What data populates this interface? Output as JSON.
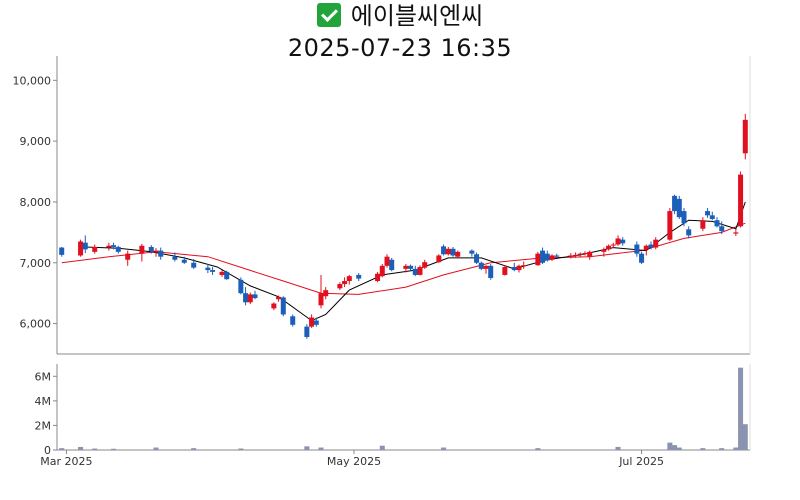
{
  "title": {
    "icon": "check-icon",
    "name": "에이블씨엔씨",
    "timestamp": "2025-07-23 16:35"
  },
  "colors": {
    "up": "#e0101e",
    "down": "#1b5fb8",
    "ma5": "#000000",
    "ma20": "#e0101e",
    "volume": "#8a93b0"
  },
  "chart_data": [
    {
      "type": "candlestick",
      "ylim": [
        5500,
        10400
      ],
      "yticks": [
        6000,
        7000,
        8000,
        9000,
        10000
      ],
      "ytick_labels": [
        "6,000",
        "7,000",
        "8,000",
        "9,000",
        "10,000"
      ],
      "xlim": [
        "2025-02-27",
        "2025-07-24"
      ],
      "xticks": [
        "2025-03-01",
        "2025-05-01",
        "2025-07-01"
      ],
      "xtick_labels": [
        "Mar 2025",
        "May 2025",
        "Jul 2025"
      ],
      "grid": false,
      "legend": "none",
      "candles": [
        [
          "2025-02-28",
          7250,
          7260,
          7100,
          7130
        ],
        [
          "2025-03-04",
          7120,
          7380,
          7100,
          7350
        ],
        [
          "2025-03-05",
          7330,
          7450,
          7160,
          7220
        ],
        [
          "2025-03-07",
          7180,
          7300,
          7150,
          7260
        ],
        [
          "2025-03-10",
          7250,
          7330,
          7200,
          7280
        ],
        [
          "2025-03-11",
          7290,
          7330,
          7220,
          7260
        ],
        [
          "2025-03-12",
          7260,
          7280,
          7150,
          7180
        ],
        [
          "2025-03-14",
          7050,
          7200,
          6950,
          7150
        ],
        [
          "2025-03-17",
          7150,
          7310,
          7020,
          7280
        ],
        [
          "2025-03-19",
          7260,
          7290,
          7150,
          7190
        ],
        [
          "2025-03-20",
          7190,
          7240,
          7100,
          7200
        ],
        [
          "2025-03-21",
          7200,
          7250,
          7050,
          7100
        ],
        [
          "2025-03-24",
          7100,
          7170,
          7020,
          7050
        ],
        [
          "2025-03-26",
          7050,
          7100,
          6980,
          7000
        ],
        [
          "2025-03-28",
          7000,
          7060,
          6900,
          6920
        ],
        [
          "2025-03-31",
          6920,
          6980,
          6830,
          6880
        ],
        [
          "2025-04-01",
          6880,
          6930,
          6800,
          6850
        ],
        [
          "2025-04-03",
          6800,
          6880,
          6770,
          6850
        ],
        [
          "2025-04-04",
          6850,
          6870,
          6720,
          6730
        ],
        [
          "2025-04-07",
          6720,
          6760,
          6480,
          6500
        ],
        [
          "2025-04-08",
          6500,
          6600,
          6300,
          6350
        ],
        [
          "2025-04-09",
          6350,
          6510,
          6320,
          6480
        ],
        [
          "2025-04-10",
          6480,
          6540,
          6400,
          6420
        ],
        [
          "2025-04-14",
          6250,
          6350,
          6220,
          6330
        ],
        [
          "2025-04-15",
          6400,
          6460,
          6360,
          6440
        ],
        [
          "2025-04-16",
          6430,
          6450,
          6120,
          6150
        ],
        [
          "2025-04-18",
          6120,
          6150,
          5950,
          5980
        ],
        [
          "2025-04-21",
          5950,
          5990,
          5750,
          5780
        ],
        [
          "2025-04-22",
          5950,
          6150,
          5930,
          6100
        ],
        [
          "2025-04-23",
          6050,
          6100,
          5950,
          5980
        ],
        [
          "2025-04-24",
          6300,
          6800,
          6250,
          6500
        ],
        [
          "2025-04-25",
          6450,
          6600,
          6400,
          6550
        ],
        [
          "2025-04-28",
          6580,
          6680,
          6550,
          6650
        ],
        [
          "2025-04-29",
          6650,
          6760,
          6600,
          6700
        ],
        [
          "2025-04-30",
          6700,
          6800,
          6640,
          6780
        ],
        [
          "2025-05-02",
          6800,
          6830,
          6700,
          6740
        ],
        [
          "2025-05-06",
          6700,
          6850,
          6680,
          6820
        ],
        [
          "2025-05-07",
          6780,
          6980,
          6760,
          6950
        ],
        [
          "2025-05-08",
          6950,
          7140,
          6920,
          7100
        ],
        [
          "2025-05-09",
          7050,
          7080,
          6860,
          6880
        ],
        [
          "2025-05-12",
          6900,
          6980,
          6840,
          6950
        ],
        [
          "2025-05-13",
          6950,
          6970,
          6870,
          6900
        ],
        [
          "2025-05-14",
          6900,
          6950,
          6780,
          6800
        ],
        [
          "2025-05-15",
          6800,
          6960,
          6790,
          6930
        ],
        [
          "2025-05-16",
          6920,
          7050,
          6900,
          7010
        ],
        [
          "2025-05-19",
          7010,
          7140,
          7000,
          7120
        ],
        [
          "2025-05-20",
          7270,
          7300,
          7120,
          7140
        ],
        [
          "2025-05-21",
          7140,
          7260,
          7120,
          7230
        ],
        [
          "2025-05-22",
          7230,
          7260,
          7100,
          7120
        ],
        [
          "2025-05-23",
          7100,
          7200,
          7080,
          7180
        ],
        [
          "2025-05-26",
          7200,
          7220,
          7100,
          7150
        ],
        [
          "2025-05-27",
          7140,
          7170,
          6980,
          7000
        ],
        [
          "2025-05-28",
          7000,
          7020,
          6880,
          6900
        ],
        [
          "2025-05-29",
          6900,
          6960,
          6820,
          6950
        ],
        [
          "2025-05-30",
          6950,
          6980,
          6720,
          6750
        ],
        [
          "2025-06-02",
          6800,
          6960,
          6790,
          6930
        ],
        [
          "2025-06-04",
          6930,
          7000,
          6860,
          6880
        ],
        [
          "2025-06-05",
          6880,
          6970,
          6840,
          6950
        ],
        [
          "2025-06-06",
          6950,
          7020,
          6900,
          6960
        ],
        [
          "2025-06-09",
          6960,
          7180,
          6950,
          7150
        ],
        [
          "2025-06-10",
          7200,
          7250,
          6980,
          7000
        ],
        [
          "2025-06-11",
          7150,
          7200,
          7020,
          7040
        ],
        [
          "2025-06-12",
          7050,
          7140,
          7030,
          7120
        ],
        [
          "2025-06-13",
          7120,
          7150,
          7080,
          7100
        ],
        [
          "2025-06-16",
          7100,
          7160,
          7070,
          7120
        ],
        [
          "2025-06-17",
          7120,
          7170,
          7080,
          7130
        ],
        [
          "2025-06-18",
          7130,
          7170,
          7100,
          7150
        ],
        [
          "2025-06-19",
          7150,
          7190,
          7120,
          7160
        ],
        [
          "2025-06-20",
          7100,
          7200,
          7050,
          7180
        ],
        [
          "2025-06-23",
          7180,
          7250,
          7100,
          7220
        ],
        [
          "2025-06-24",
          7220,
          7300,
          7200,
          7280
        ],
        [
          "2025-06-25",
          7290,
          7330,
          7250,
          7300
        ],
        [
          "2025-06-26",
          7300,
          7450,
          7280,
          7400
        ],
        [
          "2025-06-27",
          7380,
          7420,
          7280,
          7320
        ],
        [
          "2025-06-30",
          7300,
          7350,
          7100,
          7150
        ],
        [
          "2025-07-01",
          7150,
          7180,
          6980,
          7000
        ],
        [
          "2025-07-02",
          7220,
          7300,
          7120,
          7280
        ],
        [
          "2025-07-03",
          7300,
          7350,
          7220,
          7250
        ],
        [
          "2025-07-04",
          7250,
          7420,
          7220,
          7380
        ],
        [
          "2025-07-07",
          7380,
          7900,
          7360,
          7850
        ],
        [
          "2025-07-08",
          8100,
          8120,
          7800,
          7850
        ],
        [
          "2025-07-09",
          8050,
          8100,
          7720,
          7750
        ],
        [
          "2025-07-10",
          7850,
          7900,
          7600,
          7650
        ],
        [
          "2025-07-11",
          7550,
          7600,
          7400,
          7450
        ],
        [
          "2025-07-14",
          7560,
          7750,
          7520,
          7700
        ],
        [
          "2025-07-15",
          7850,
          7900,
          7740,
          7780
        ],
        [
          "2025-07-16",
          7780,
          7840,
          7700,
          7720
        ],
        [
          "2025-07-17",
          7700,
          7750,
          7580,
          7600
        ],
        [
          "2025-07-18",
          7600,
          7680,
          7470,
          7520
        ],
        [
          "2025-07-21",
          7480,
          7560,
          7440,
          7500
        ],
        [
          "2025-07-22",
          7600,
          8500,
          7580,
          8450
        ],
        [
          "2025-07-23",
          8800,
          9450,
          8700,
          9350
        ]
      ],
      "ma5": [
        [
          "2025-03-05",
          7260
        ],
        [
          "2025-03-12",
          7240
        ],
        [
          "2025-03-19",
          7180
        ],
        [
          "2025-03-26",
          7080
        ],
        [
          "2025-04-02",
          6930
        ],
        [
          "2025-04-09",
          6620
        ],
        [
          "2025-04-15",
          6440
        ],
        [
          "2025-04-22",
          6050
        ],
        [
          "2025-04-25",
          6150
        ],
        [
          "2025-04-30",
          6550
        ],
        [
          "2025-05-07",
          6800
        ],
        [
          "2025-05-14",
          6880
        ],
        [
          "2025-05-21",
          7080
        ],
        [
          "2025-05-28",
          7080
        ],
        [
          "2025-06-04",
          6900
        ],
        [
          "2025-06-11",
          7050
        ],
        [
          "2025-06-18",
          7130
        ],
        [
          "2025-06-25",
          7250
        ],
        [
          "2025-07-02",
          7200
        ],
        [
          "2025-07-07",
          7500
        ],
        [
          "2025-07-11",
          7700
        ],
        [
          "2025-07-16",
          7680
        ],
        [
          "2025-07-21",
          7560
        ],
        [
          "2025-07-23",
          8000
        ]
      ],
      "ma20": [
        [
          "2025-02-28",
          7000
        ],
        [
          "2025-03-10",
          7100
        ],
        [
          "2025-03-20",
          7180
        ],
        [
          "2025-03-31",
          7100
        ],
        [
          "2025-04-08",
          6900
        ],
        [
          "2025-04-16",
          6700
        ],
        [
          "2025-04-24",
          6500
        ],
        [
          "2025-05-02",
          6480
        ],
        [
          "2025-05-12",
          6600
        ],
        [
          "2025-05-20",
          6800
        ],
        [
          "2025-05-30",
          7000
        ],
        [
          "2025-06-10",
          7080
        ],
        [
          "2025-06-20",
          7100
        ],
        [
          "2025-07-01",
          7200
        ],
        [
          "2025-07-10",
          7400
        ],
        [
          "2025-07-18",
          7500
        ],
        [
          "2025-07-23",
          7650
        ]
      ]
    },
    {
      "type": "bar",
      "ylim": [
        0,
        7000000
      ],
      "yticks": [
        0,
        2000000,
        4000000,
        6000000
      ],
      "ytick_labels": [
        "0",
        "2M",
        "4M",
        "6M"
      ],
      "x": [
        "2025-02-28",
        "2025-03-04",
        "2025-03-07",
        "2025-03-11",
        "2025-03-20",
        "2025-03-28",
        "2025-04-07",
        "2025-04-21",
        "2025-04-24",
        "2025-05-07",
        "2025-05-20",
        "2025-06-09",
        "2025-06-26",
        "2025-07-07",
        "2025-07-08",
        "2025-07-09",
        "2025-07-14",
        "2025-07-18",
        "2025-07-21",
        "2025-07-22",
        "2025-07-23"
      ],
      "values": [
        150000,
        250000,
        120000,
        100000,
        200000,
        150000,
        120000,
        300000,
        200000,
        350000,
        200000,
        150000,
        250000,
        600000,
        400000,
        200000,
        150000,
        150000,
        200000,
        6700000,
        2100000
      ]
    }
  ]
}
